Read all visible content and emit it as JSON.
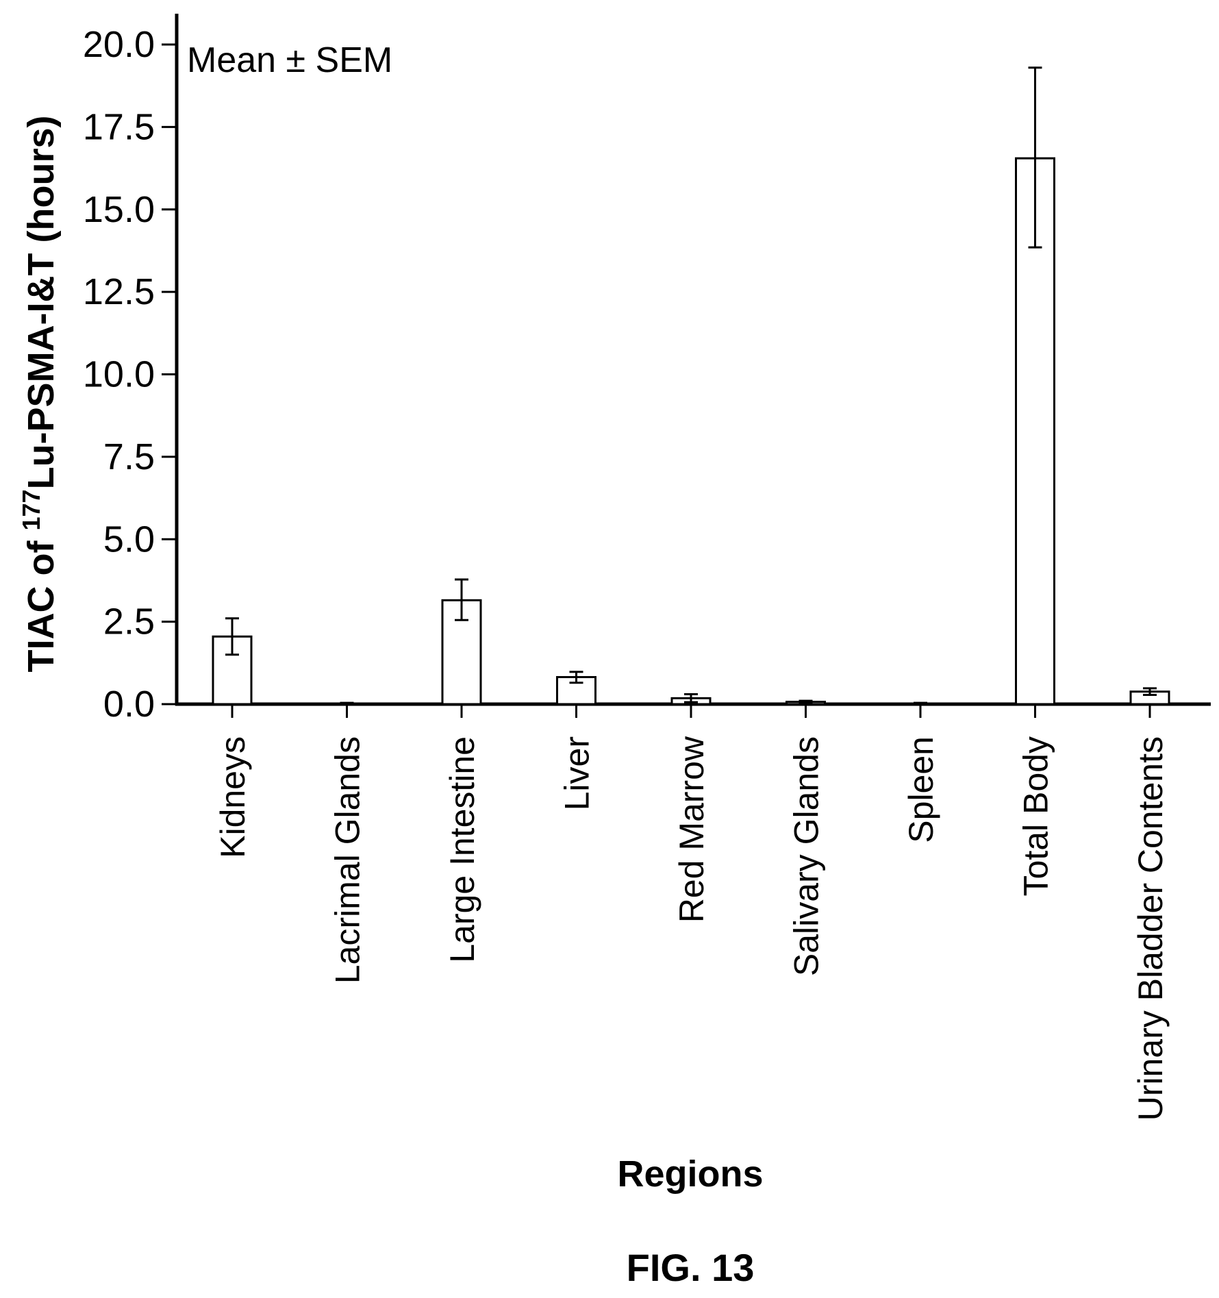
{
  "chart_data": {
    "type": "bar",
    "annotation": "Mean ± SEM",
    "ylabel": {
      "prefix": "TIAC of ",
      "superscript": "177",
      "suffix": "Lu-PSMA-I&T (hours)"
    },
    "xlabel": "Regions",
    "figure_caption": "FIG. 13",
    "ylim": [
      0,
      20
    ],
    "yticks": [
      0.0,
      2.5,
      5.0,
      7.5,
      10.0,
      12.5,
      15.0,
      17.5,
      20.0
    ],
    "ytick_labels": [
      "0.0",
      "2.5",
      "5.0",
      "7.5",
      "10.0",
      "12.5",
      "15.0",
      "17.5",
      "20.0"
    ],
    "grid": false,
    "categories": [
      "Kidneys",
      "Lacrimal Glands",
      "Large Intestine",
      "Liver",
      "Red Marrow",
      "Salivary Glands",
      "Spleen",
      "Total Body",
      "Urinary Bladder Contents"
    ],
    "values": [
      2.05,
      0.0,
      3.15,
      0.82,
      0.18,
      0.07,
      0.02,
      16.55,
      0.38
    ],
    "error_low": [
      1.5,
      0.0,
      2.55,
      0.65,
      0.06,
      0.03,
      0.0,
      13.85,
      0.28
    ],
    "error_high": [
      2.6,
      0.04,
      3.78,
      0.98,
      0.3,
      0.1,
      0.04,
      19.3,
      0.48
    ]
  }
}
